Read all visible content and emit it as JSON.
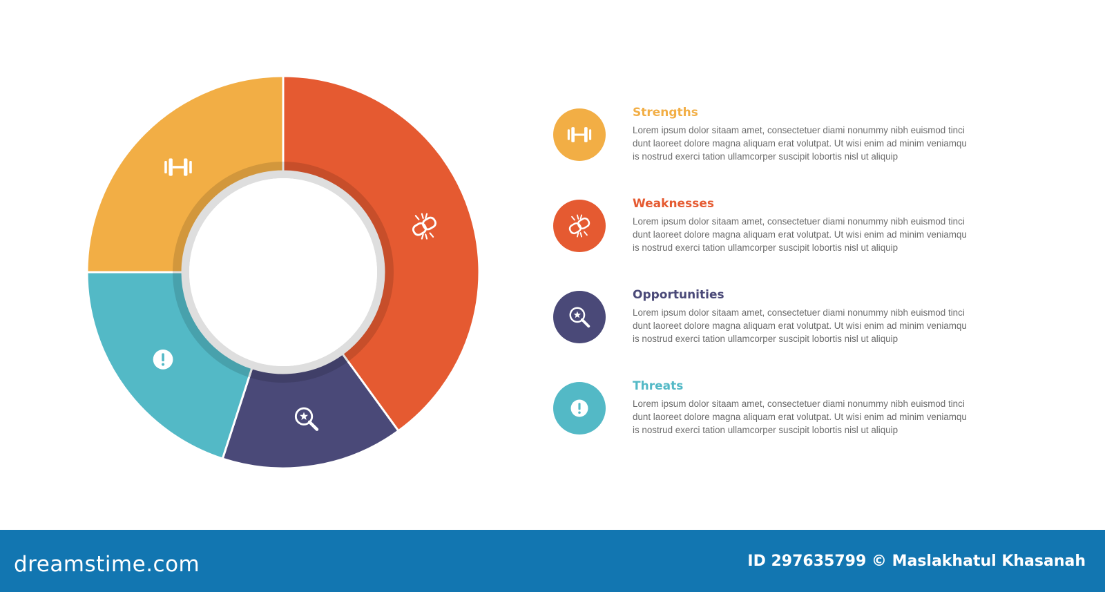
{
  "chart_data": {
    "type": "donut",
    "segments": [
      {
        "name": "Strengths",
        "color": "#f2ae45",
        "icon": "dumbbell-icon",
        "value": 25
      },
      {
        "name": "Weaknesses",
        "color": "#e55a31",
        "icon": "broken-link-icon",
        "value": 40
      },
      {
        "name": "Opportunities",
        "color": "#4a4978",
        "icon": "search-star-icon",
        "value": 15
      },
      {
        "name": "Threats",
        "color": "#53b9c6",
        "icon": "exclamation-icon",
        "value": 20
      }
    ]
  },
  "legend": [
    {
      "title": "Strengths",
      "color": "#f2ae45",
      "icon": "dumbbell-icon",
      "body": "Lorem ipsum dolor sitaam amet, consectetuer diami nonummy  nibh euismod tinci\ndunt laoreet dolore magna aliquam erat volutpat. Ut wisi enim ad minim veniamqu\nis nostrud exerci tation ullamcorper suscipit lobortis nisl ut aliquip"
    },
    {
      "title": "Weaknesses",
      "color": "#e55a31",
      "icon": "broken-link-icon",
      "body": "Lorem ipsum dolor sitaam amet, consectetuer diami nonummy  nibh euismod tinci\ndunt laoreet dolore magna aliquam erat volutpat. Ut wisi enim ad minim veniamqu\nis nostrud exerci tation ullamcorper suscipit lobortis nisl ut aliquip"
    },
    {
      "title": "Opportunities",
      "color": "#4a4978",
      "icon": "search-star-icon",
      "body": "Lorem ipsum dolor sitaam amet, consectetuer diami nonummy  nibh euismod tinci\ndunt laoreet dolore magna aliquam erat volutpat. Ut wisi enim ad minim veniamqu\nis nostrud exerci tation ullamcorper suscipit lobortis nisl ut aliquip"
    },
    {
      "title": "Threats",
      "color": "#53b9c6",
      "icon": "exclamation-icon",
      "body": "Lorem ipsum dolor sitaam amet, consectetuer diami nonummy  nibh euismod tinci\ndunt laoreet dolore magna aliquam erat volutpat. Ut wisi enim ad minim veniamqu\nis nostrud exerci tation ullamcorper suscipit lobortis nisl ut aliquip"
    }
  ],
  "footer": {
    "logo_text": "dreamstime.com",
    "id_text": "ID 297635799 © Maslakhatul Khasanah",
    "background": "#1276b1"
  }
}
